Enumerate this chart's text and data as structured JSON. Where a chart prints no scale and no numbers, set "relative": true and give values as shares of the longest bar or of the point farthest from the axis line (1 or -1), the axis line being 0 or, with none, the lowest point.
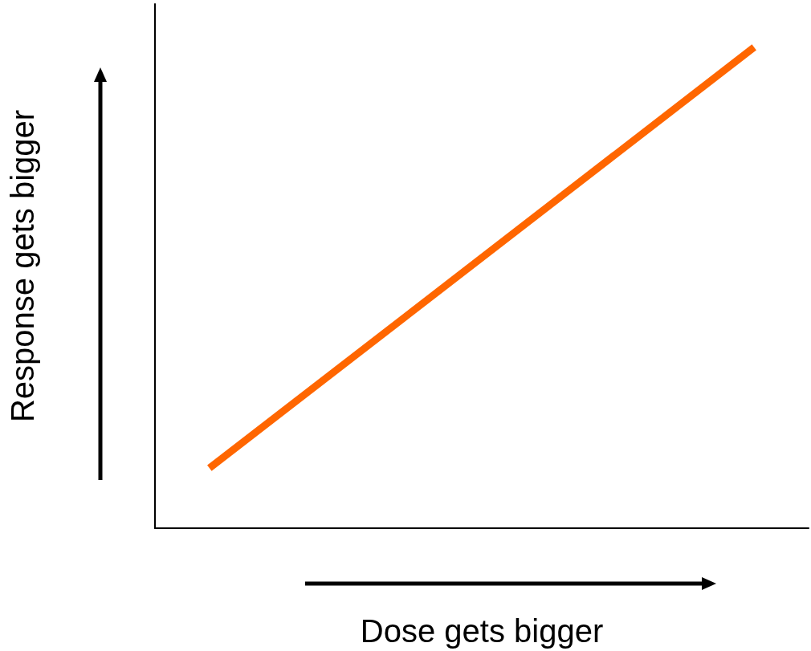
{
  "chart_data": {
    "type": "line",
    "xlabel": "Dose gets bigger",
    "ylabel": "Response gets bigger",
    "relative": true,
    "categories": [
      null,
      null,
      null,
      null,
      null,
      null,
      null,
      null,
      null,
      null,
      null,
      null,
      null
    ],
    "series": [
      {
        "color": "#ff6600",
        "values": [
          null,
          0.125,
          null,
          null,
          null,
          null,
          null,
          null,
          null,
          null,
          null,
          1,
          null
        ]
      }
    ],
    "grid": false,
    "marker": "none",
    "line_style": "solid"
  }
}
